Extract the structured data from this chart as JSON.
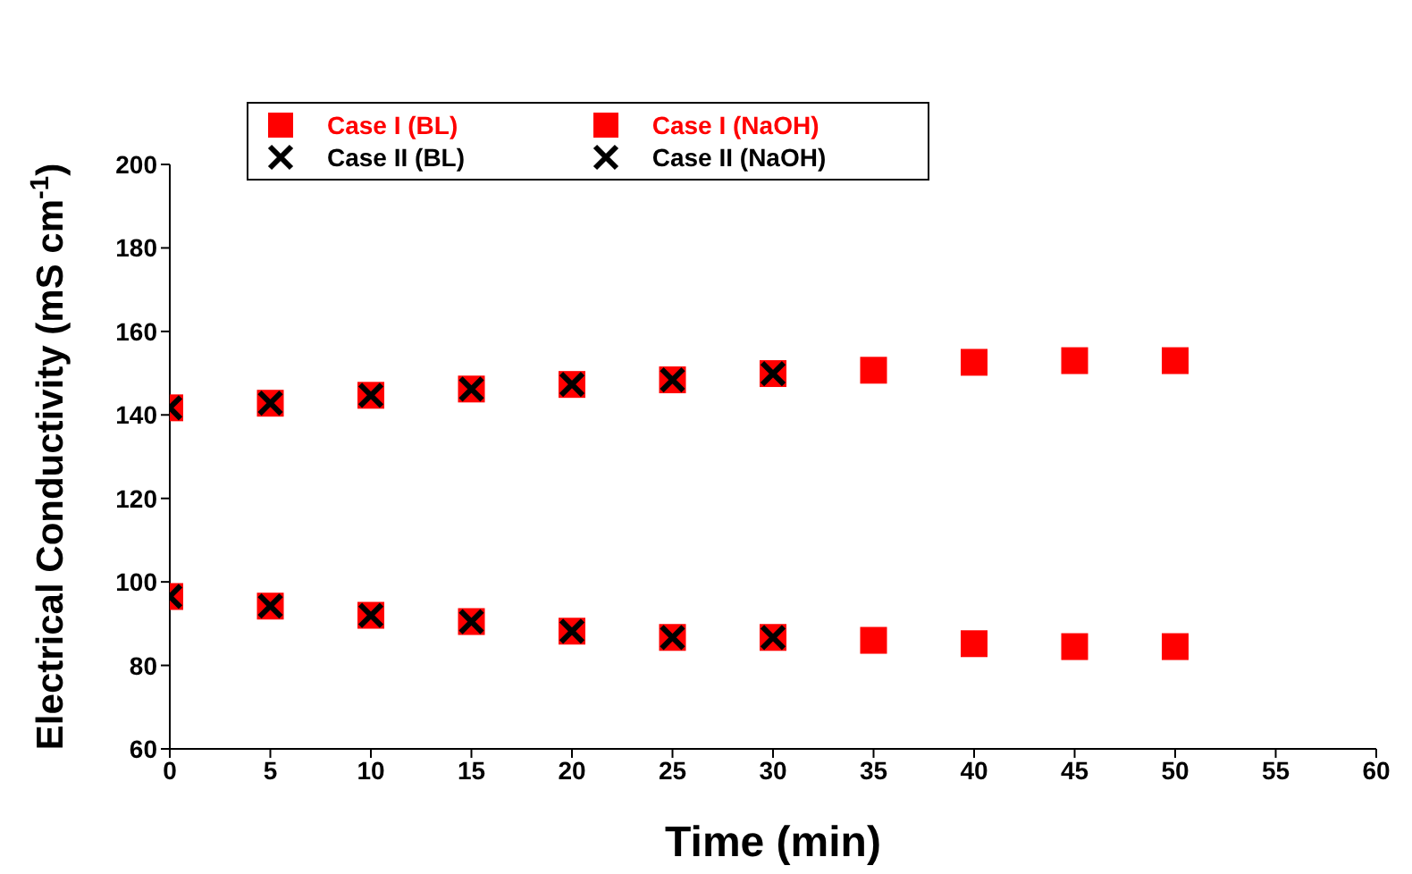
{
  "chart_data": {
    "type": "scatter",
    "xlabel": "Time (min)",
    "ylabel": "Electrical Conductivity (mS cm$^{-1}$)",
    "xlim": [
      0,
      60
    ],
    "xticks": [
      0,
      5,
      10,
      15,
      20,
      25,
      30,
      35,
      40,
      45,
      50,
      55,
      60
    ],
    "ylim": [
      60,
      200
    ],
    "yticks": [
      60,
      80,
      100,
      120,
      140,
      160,
      180,
      200
    ],
    "grid": false,
    "legend": "top left",
    "x": [
      0,
      5,
      10,
      15,
      20,
      25,
      30,
      35,
      40,
      45,
      50
    ],
    "series": [
      {
        "name": "Case I (BL)",
        "color": "#ff0000",
        "marker": "square",
        "values": [
          96.5,
          94.2,
          92,
          90.5,
          88.2,
          86.7,
          86.7,
          86,
          85.2,
          84.5,
          84.5
        ]
      },
      {
        "name": "Case I (NaOH)",
        "color": "#ff0000",
        "marker": "square",
        "values": [
          141.7,
          142.8,
          144.7,
          146.2,
          147.3,
          148.4,
          149.9,
          150.7,
          152.6,
          153,
          153
        ]
      },
      {
        "name": "Case II (BL)",
        "color": "#000000",
        "marker": "cross",
        "values": [
          96.5,
          94.2,
          92,
          90.5,
          88.2,
          86.7,
          86.7,
          null,
          null,
          null,
          null
        ]
      },
      {
        "name": "Case II (NaOH)",
        "color": "#000000",
        "marker": "cross",
        "values": [
          141.7,
          142.8,
          144.7,
          146.2,
          147.3,
          148.4,
          149.9,
          null,
          null,
          null,
          null
        ]
      }
    ]
  }
}
